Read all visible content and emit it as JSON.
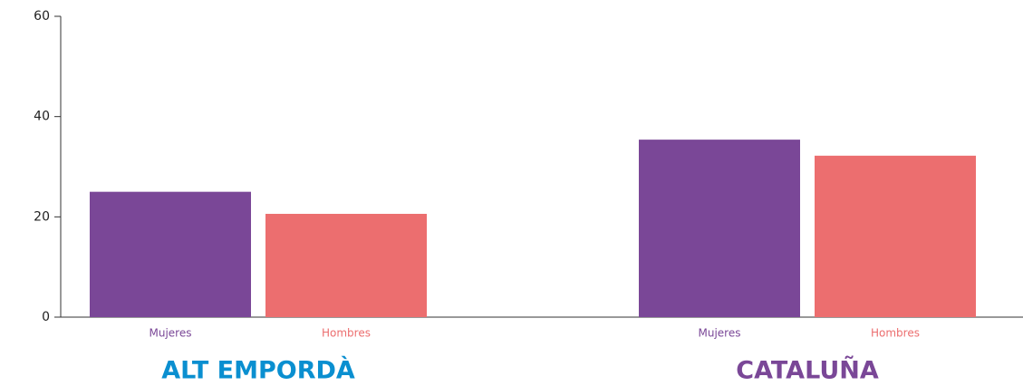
{
  "chart_data": {
    "type": "bar",
    "categories": [
      "ALT EMPORDÀ",
      "CATALUÑA"
    ],
    "category_colors": [
      "#0a8fd0",
      "#7a4797"
    ],
    "series": [
      {
        "name": "Mujeres",
        "color": "#7a4797",
        "values": [
          25,
          35.4
        ]
      },
      {
        "name": "Hombres",
        "color": "#ec6e6f",
        "values": [
          20.6,
          32.2
        ]
      }
    ],
    "ylim": [
      0,
      60
    ],
    "yticks": [
      0,
      20,
      40,
      60
    ],
    "grid": false
  }
}
